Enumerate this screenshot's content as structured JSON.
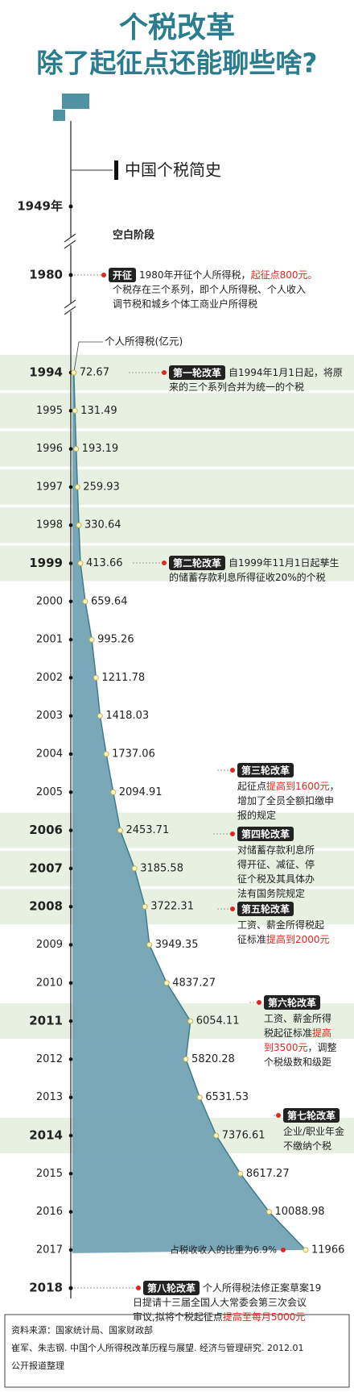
{
  "title": [
    "个税改革",
    "除了起征点还能聊些啥?"
  ],
  "section_title": "中国个税简史",
  "history": {
    "start": "1949年",
    "blank": "空白阶段",
    "start_tax": "1980"
  },
  "chart_data": {
    "type": "area",
    "value_label": "个人所得税(亿元)",
    "categories": [
      "1994",
      "1995",
      "1996",
      "1997",
      "1998",
      "1999",
      "2000",
      "2001",
      "2002",
      "2003",
      "2004",
      "2005",
      "2006",
      "2007",
      "2008",
      "2009",
      "2010",
      "2011",
      "2012",
      "2013",
      "2014",
      "2015",
      "2016",
      "2017"
    ],
    "values": [
      72.67,
      131.49,
      193.19,
      259.93,
      330.64,
      413.66,
      659.64,
      995.26,
      1211.78,
      1418.03,
      1737.06,
      2094.91,
      2453.71,
      3185.58,
      3722.31,
      3949.35,
      4837.27,
      6054.11,
      5820.28,
      6531.53,
      7376.61,
      8617.27,
      10088.98,
      11966
    ],
    "color": "#6b9fb0",
    "line_color": "#3e7d8d",
    "band_color": "#e8f0e2",
    "band_rows": [
      0,
      1,
      2,
      3,
      4,
      5,
      12,
      13,
      14,
      17,
      20
    ],
    "bold_rows": [
      0,
      5,
      12,
      13,
      14,
      17,
      20
    ]
  },
  "share_note": "占税收收入的比重为6.9%",
  "final_year": "2018",
  "annotations": [
    {
      "tag": "开征",
      "lines": [
        [
          "1980年开征个人所得税，",
          {
            "text": "起征点800元。",
            "color": "#e0281e"
          }
        ],
        [
          "个税存在三个系列，即个人所得税、个人收入"
        ],
        [
          "调节税和城乡个体工商业户所得税"
        ]
      ]
    },
    {
      "tag": "第一轮改革",
      "lines": [
        [
          "自1994年1月1日起，将原"
        ],
        [
          "来的三个系列合并为统一的个税"
        ]
      ]
    },
    {
      "tag": "第二轮改革",
      "lines": [
        [
          "自1999年11月1日起孳生"
        ],
        [
          "的储蓄存款利息所得征收20%的个税"
        ]
      ]
    },
    {
      "tag": "第三轮改革",
      "lines": [
        [
          "起征点",
          {
            "text": "提高到1600元",
            "color": "#e0281e"
          },
          "，"
        ],
        [
          "增加了全员全额扣缴申"
        ],
        [
          "报的规定"
        ]
      ]
    },
    {
      "tag": "第四轮改革",
      "lines": [
        [
          "对储蓄存款利息所"
        ],
        [
          "得开征、减征、停"
        ],
        [
          "征个税及其具体办"
        ],
        [
          "法有国务院规定"
        ]
      ]
    },
    {
      "tag": "第五轮改革",
      "lines": [
        [
          "工资、薪金所得税起"
        ],
        [
          "征标准",
          {
            "text": "提高到2000元",
            "color": "#e0281e"
          }
        ]
      ]
    },
    {
      "tag": "第六轮改革",
      "lines": [
        [
          "工资、薪金所得"
        ],
        [
          "税起征标准",
          {
            "text": "提高",
            "color": "#e0281e"
          }
        ],
        [
          {
            "text": "到3500元",
            "color": "#e0281e"
          },
          "，调整"
        ],
        [
          "个税级数和级距"
        ]
      ]
    },
    {
      "tag": "第七轮改革",
      "lines": [
        [
          "企业/职业年金"
        ],
        [
          "不缴纳个税"
        ]
      ]
    },
    {
      "tag": "第八轮改革",
      "lines": [
        [
          "个人所得税法修正案草案19"
        ],
        [
          "日提请十三届全国人大常委会第三次会议"
        ],
        [
          "审议,拟将个税起征点",
          {
            "text": "提高至每月5000元",
            "color": "#e0281e"
          }
        ]
      ]
    }
  ],
  "sources": [
    "资料来源：国家统计局、国家财政部",
    "崔军、朱志钢. 中国个人所得税改革历程与展望. 经济与管理研究. 2012.01",
    "公开报道整理"
  ]
}
